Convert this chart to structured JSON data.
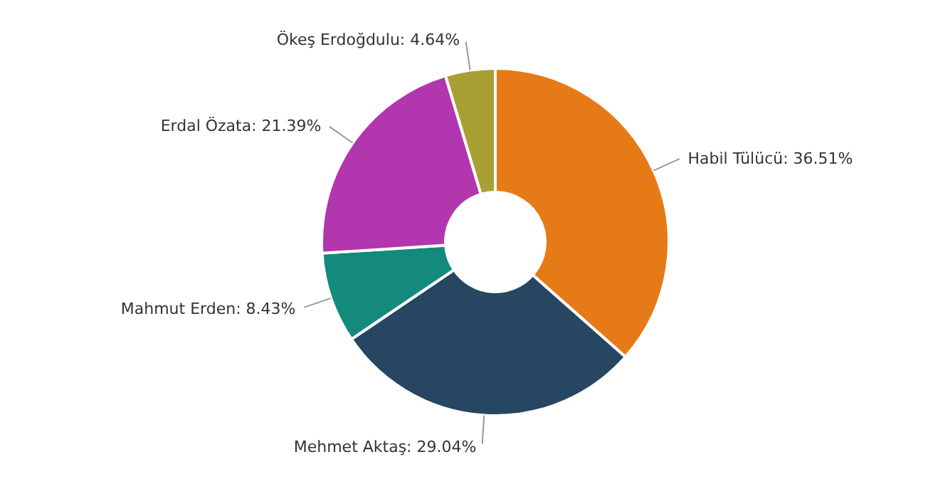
{
  "chart_data": {
    "type": "donut",
    "categories": [
      "Habil Tülücü",
      "Mehmet Aktaş",
      "Mahmut Erden",
      "Erdal Özata",
      "Ökeş Erdoğdulu"
    ],
    "values": [
      36.51,
      29.04,
      8.43,
      21.39,
      4.64
    ],
    "value_labels": [
      "36.51%",
      "29.04%",
      "8.43%",
      "21.39%",
      "4.64%"
    ],
    "colors": [
      "#e67a17",
      "#264661",
      "#138a7c",
      "#b236ad",
      "#a8a034"
    ],
    "legend": false
  }
}
